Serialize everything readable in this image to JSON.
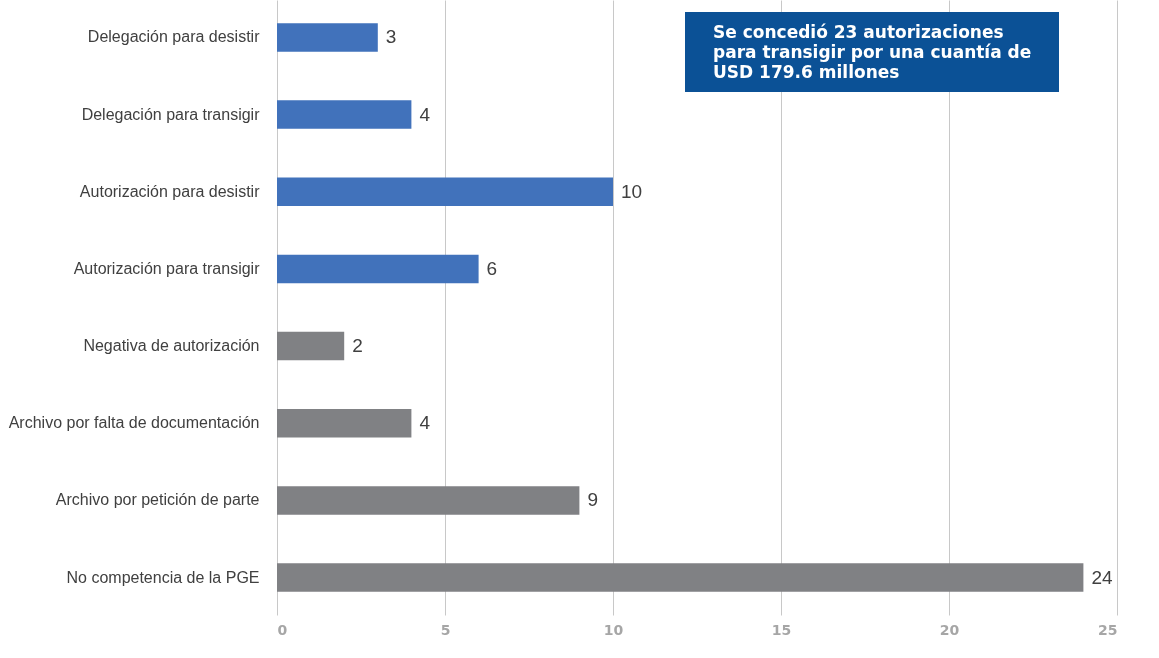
{
  "chart_data": {
    "type": "bar",
    "orientation": "horizontal",
    "categories": [
      "Delegación para desistir",
      "Delegación para transigir",
      "Autorización para desistir",
      "Autorización para  transigir",
      "Negativa de autorización",
      "Archivo por falta de documentación",
      "Archivo por petición de parte",
      "No competencia de la PGE"
    ],
    "values": [
      3,
      4,
      10,
      6,
      2,
      4,
      9,
      24
    ],
    "colors": [
      "#4172bb",
      "#4172bb",
      "#4172bb",
      "#4172bb",
      "#808184",
      "#808184",
      "#808184",
      "#808184"
    ],
    "xlim": [
      0,
      25
    ],
    "xticks": [
      0,
      5,
      10,
      15,
      20,
      25
    ],
    "grid": "x",
    "data_labels": true,
    "annotations": [
      "Se concedió 23 autorizaciones para transigir por una cuantía de USD 179.6 millones"
    ]
  }
}
